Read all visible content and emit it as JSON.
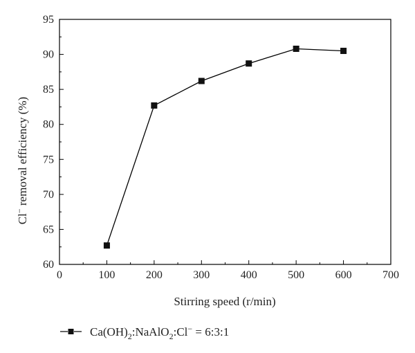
{
  "chart_data": {
    "type": "line",
    "x": [
      100,
      200,
      300,
      400,
      500,
      600
    ],
    "series": [
      {
        "name": "Ca(OH)2:NaAlO2:Cl− = 6:3:1",
        "values": [
          62.7,
          82.7,
          86.2,
          88.7,
          90.8,
          90.5
        ]
      }
    ],
    "xlabel": "Stirring speed (r/min)",
    "ylabel": "Cl− removal efficiency (%)",
    "xlim": [
      0,
      700
    ],
    "ylim": [
      60,
      95
    ],
    "xticks": [
      0,
      100,
      200,
      300,
      400,
      500,
      600,
      700
    ],
    "yticks": [
      60,
      65,
      70,
      75,
      80,
      85,
      90,
      95
    ],
    "grid": false,
    "legend_position": "bottom-left",
    "marker": "square",
    "line_color": "#000000"
  },
  "legend": {
    "part1": "Ca(OH)",
    "sub1": "2",
    "part2": ":NaAlO",
    "sub2": "2",
    "part3": ":Cl",
    "sup1": "−",
    "part4": " = 6:3:1"
  },
  "ylabel_parts": {
    "main1": "Cl",
    "sup": "−",
    "main2": " removal efficiency (%)"
  }
}
